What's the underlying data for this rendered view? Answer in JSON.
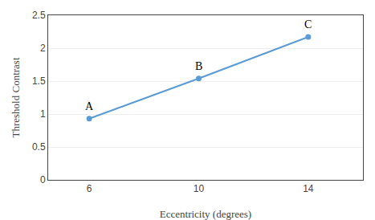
{
  "chart_data": {
    "type": "line",
    "x": [
      6,
      10,
      14
    ],
    "values": [
      0.93,
      1.54,
      2.17
    ],
    "annotations": [
      "A",
      "B",
      "C"
    ],
    "color": "#5b9bd5",
    "marker": "circle",
    "x_label": "Eccentricity (degrees)",
    "y_label": "Threshold Contrast",
    "xlim": [
      4.5,
      16
    ],
    "ylim": [
      0,
      2.5
    ],
    "xticks": [
      6,
      10,
      14
    ],
    "yticks": [
      0,
      0.5,
      1,
      1.5,
      2,
      2.5
    ],
    "grid": "y"
  }
}
